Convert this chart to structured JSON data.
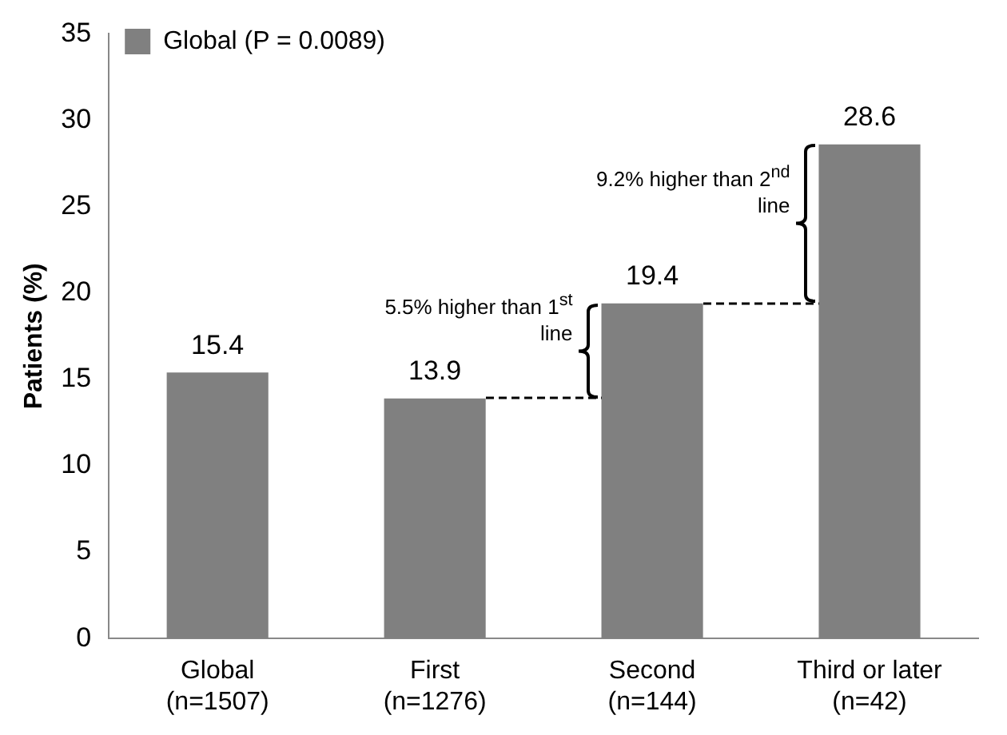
{
  "chart_data": {
    "type": "bar",
    "categories": [
      "Global\n(n=1507)",
      "First\n(n=1276)",
      "Second\n(n=144)",
      "Third or later\n(n=42)"
    ],
    "series": [
      {
        "name": "Global (P = 0.0089)",
        "color": "#808080",
        "values": [
          15.4,
          13.9,
          19.4,
          28.6
        ]
      }
    ],
    "ylabel": "Patients (%)",
    "ylim": [
      0,
      35
    ],
    "yticks": [
      0,
      5,
      10,
      15,
      20,
      25,
      30,
      35
    ],
    "grid": false,
    "legend": "top left",
    "data_labels": true,
    "annotations": [
      "5.5% higher than 1$^{st}$ line",
      "9.2% higher than 2$^{nd}$ line"
    ]
  }
}
